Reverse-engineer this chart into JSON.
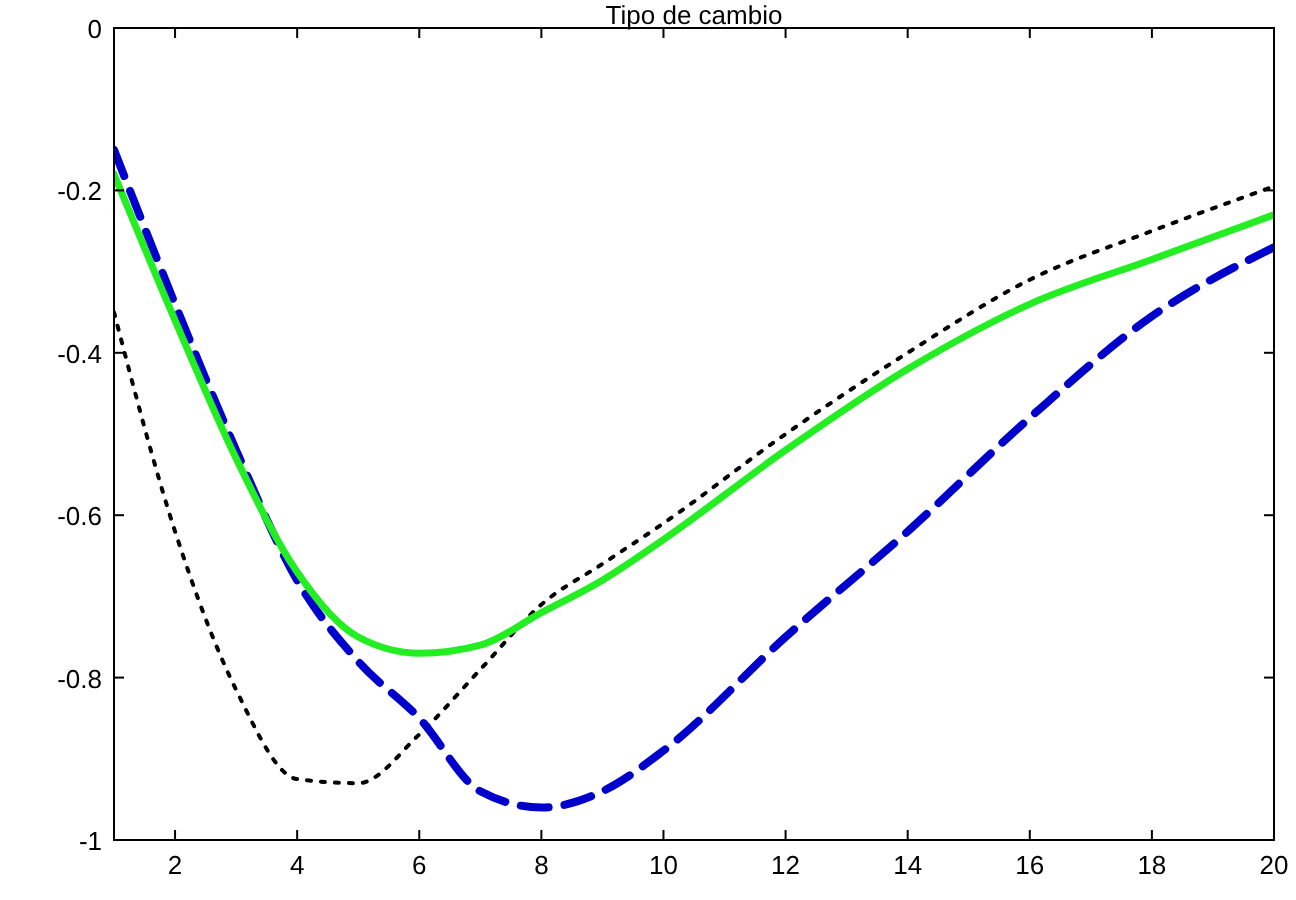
{
  "chart_data": {
    "type": "line",
    "title": "Tipo de cambio",
    "x": [
      1,
      2,
      3,
      4,
      5,
      6,
      7,
      8,
      9,
      10,
      12,
      14,
      16,
      18,
      20
    ],
    "xlim": [
      1,
      20
    ],
    "xticks": [
      2,
      4,
      6,
      8,
      10,
      12,
      14,
      16,
      18,
      20
    ],
    "ylim": [
      -1,
      0
    ],
    "yticks": [
      -1,
      -0.8,
      -0.6,
      -0.4,
      -0.2,
      0
    ],
    "grid": false,
    "marker": "none",
    "series": [
      {
        "color": "#000000",
        "line_style": "dotted",
        "values": [
          -0.35,
          -0.62,
          -0.815,
          -0.925,
          -0.93,
          -0.87,
          -0.79,
          -0.71,
          -0.66,
          -0.61,
          -0.5,
          -0.4,
          -0.31,
          -0.25,
          -0.195
        ]
      },
      {
        "color": "#0000cc",
        "line_style": "dashed",
        "values": [
          -0.15,
          -0.34,
          -0.52,
          -0.68,
          -0.78,
          -0.85,
          -0.94,
          -0.96,
          -0.94,
          -0.89,
          -0.75,
          -0.62,
          -0.48,
          -0.355,
          -0.27
        ]
      },
      {
        "color": "#22ee22",
        "line_style": "solid",
        "values": [
          -0.18,
          -0.36,
          -0.53,
          -0.67,
          -0.75,
          -0.77,
          -0.76,
          -0.72,
          -0.68,
          -0.63,
          -0.52,
          -0.42,
          -0.34,
          -0.285,
          -0.23
        ]
      }
    ]
  }
}
